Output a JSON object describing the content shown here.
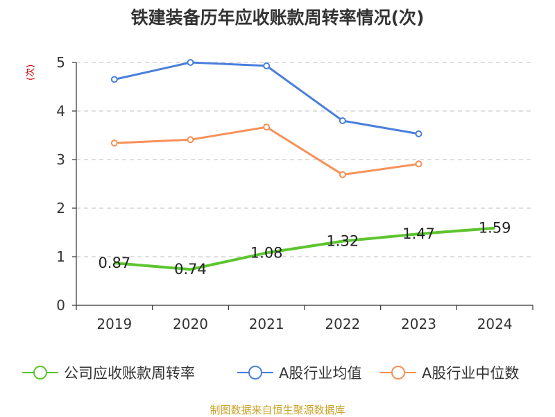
{
  "chart_data": {
    "type": "line",
    "title": "铁建装备历年应收账款周转率情况(次)",
    "ylabel": "(次)",
    "categories": [
      "2019",
      "2020",
      "2021",
      "2022",
      "2023",
      "2024"
    ],
    "ylim": [
      0,
      5
    ],
    "yticks": [
      0,
      1,
      2,
      3,
      4,
      5
    ],
    "grid": true,
    "legend_position": "bottom",
    "series": [
      {
        "name": "公司应收账款周转率",
        "color": "#5dc52f",
        "values": [
          0.87,
          0.74,
          1.08,
          1.32,
          1.47,
          1.59
        ],
        "labels": [
          "0.87",
          "0.74",
          "1.08",
          "1.32",
          "1.47",
          "1.59"
        ],
        "show_labels": true,
        "marker": "none"
      },
      {
        "name": "A股行业均值",
        "color": "#4a7fdc",
        "values": [
          4.65,
          5.0,
          4.93,
          3.8,
          3.53,
          null
        ],
        "show_labels": false,
        "marker": "circle"
      },
      {
        "name": "A股行业中位数",
        "color": "#f79057",
        "values": [
          3.34,
          3.41,
          3.67,
          2.69,
          2.91,
          null
        ],
        "show_labels": false,
        "marker": "circle"
      }
    ],
    "source": "制图数据来自恒生聚源数据库"
  }
}
